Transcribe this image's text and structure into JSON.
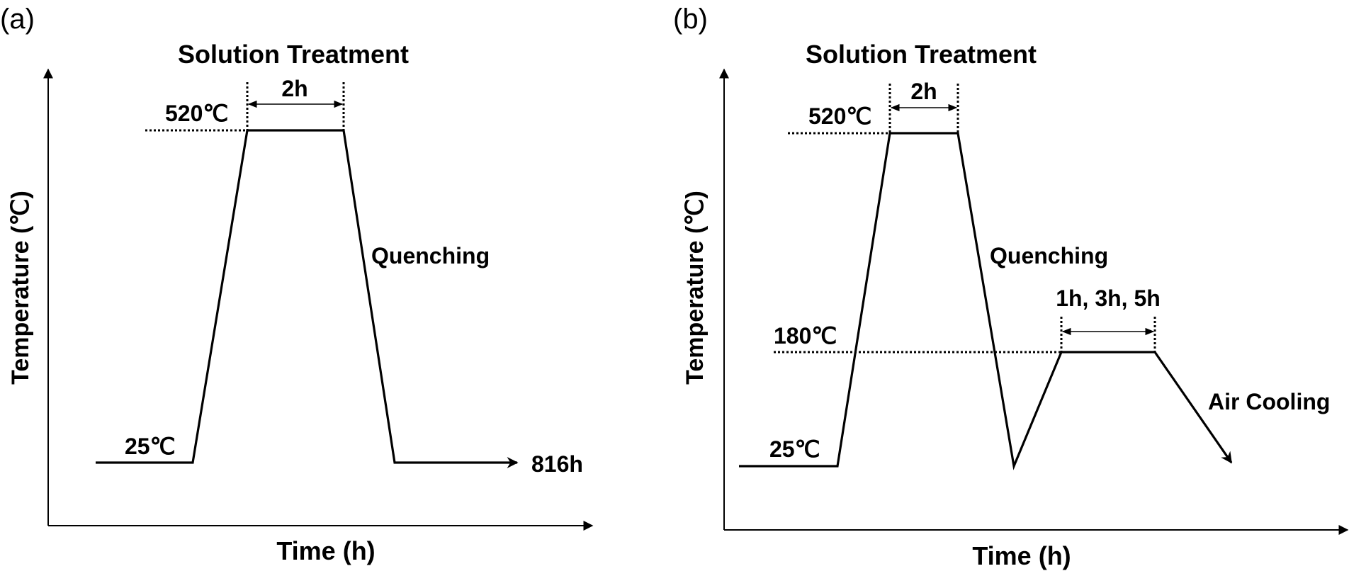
{
  "panel_a": {
    "tag": "(a)",
    "title": "Solution Treatment",
    "ylabel": "Temperature (℃)",
    "xlabel": "Time (h)",
    "temp_high": "520℃",
    "temp_room": "25℃",
    "hold_duration": "2h",
    "quench_label": "Quenching",
    "end_label": "816h"
  },
  "panel_b": {
    "tag": "(b)",
    "title": "Solution Treatment",
    "ylabel": "Temperature (℃)",
    "xlabel": "Time (h)",
    "temp_high": "520℃",
    "temp_aging": "180℃",
    "temp_room": "25℃",
    "hold_duration": "2h",
    "aging_duration": "1h, 3h, 5h",
    "quench_label": "Quenching",
    "cool_label": "Air Cooling"
  }
}
